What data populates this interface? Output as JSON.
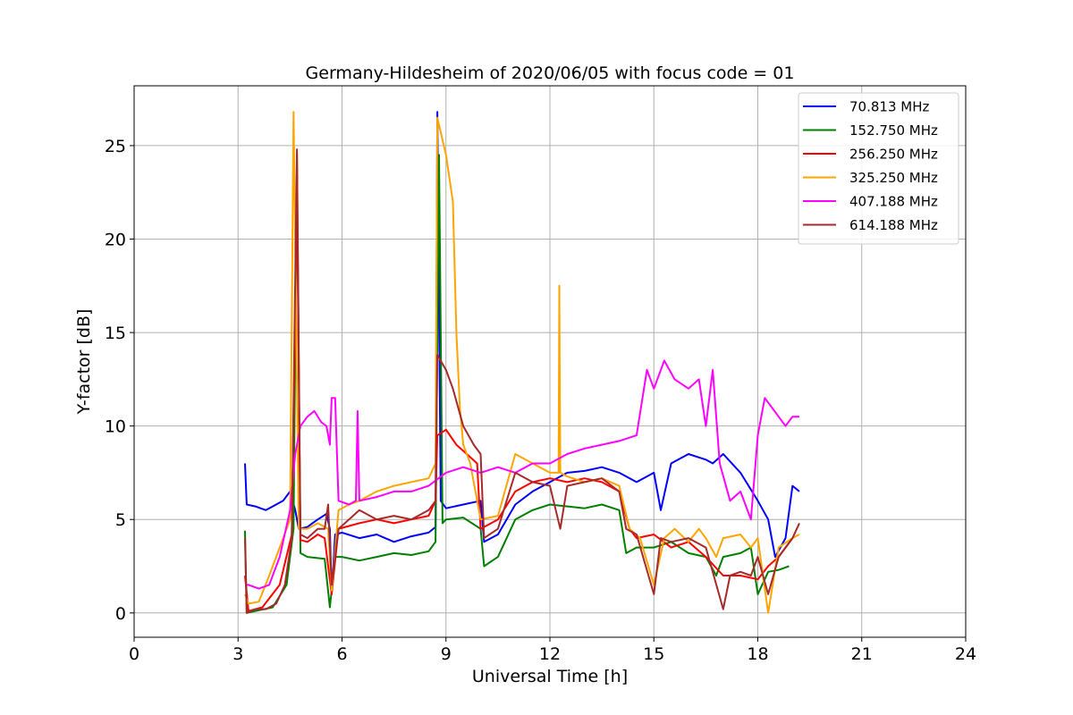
{
  "chart_data": {
    "type": "line",
    "title": "Germany-Hildesheim of 2020/06/05 with focus code = 01",
    "xlabel": "Universal Time [h]",
    "ylabel": "Y-factor [dB]",
    "xlim": [
      0,
      24
    ],
    "ylim": [
      -1.3,
      28.2
    ],
    "xticks": [
      0,
      3,
      6,
      9,
      12,
      15,
      18,
      21,
      24
    ],
    "yticks": [
      0,
      5,
      10,
      15,
      20,
      25
    ],
    "grid": true,
    "legend_position": "top-right",
    "series": [
      {
        "name": " 70.813 MHz",
        "color": "#0000ff",
        "points": [
          [
            3.2,
            8.0
          ],
          [
            3.25,
            5.8
          ],
          [
            3.5,
            5.7
          ],
          [
            3.8,
            5.5
          ],
          [
            4.0,
            5.7
          ],
          [
            4.3,
            6.0
          ],
          [
            4.5,
            6.5
          ],
          [
            4.65,
            5.5
          ],
          [
            4.75,
            4.5
          ],
          [
            5.0,
            4.6
          ],
          [
            5.3,
            5.0
          ],
          [
            5.55,
            5.3
          ],
          [
            5.65,
            4.5
          ],
          [
            5.7,
            1.0
          ],
          [
            5.8,
            4.2
          ],
          [
            6.0,
            4.3
          ],
          [
            6.5,
            4.0
          ],
          [
            7.0,
            4.2
          ],
          [
            7.5,
            3.8
          ],
          [
            8.0,
            4.1
          ],
          [
            8.5,
            4.3
          ],
          [
            8.7,
            4.6
          ],
          [
            8.75,
            26.8
          ],
          [
            8.85,
            6.0
          ],
          [
            9.0,
            5.6
          ],
          [
            9.5,
            5.8
          ],
          [
            10.0,
            6.0
          ],
          [
            10.1,
            3.8
          ],
          [
            10.5,
            4.2
          ],
          [
            11.0,
            5.8
          ],
          [
            11.5,
            6.5
          ],
          [
            12.0,
            7.0
          ],
          [
            12.5,
            7.5
          ],
          [
            13.0,
            7.6
          ],
          [
            13.5,
            7.8
          ],
          [
            14.0,
            7.5
          ],
          [
            14.5,
            7.0
          ],
          [
            15.0,
            7.5
          ],
          [
            15.2,
            5.5
          ],
          [
            15.5,
            8.0
          ],
          [
            16.0,
            8.5
          ],
          [
            16.5,
            8.2
          ],
          [
            16.7,
            8.0
          ],
          [
            17.0,
            8.5
          ],
          [
            17.5,
            7.5
          ],
          [
            18.0,
            6.0
          ],
          [
            18.3,
            5.0
          ],
          [
            18.5,
            3.0
          ],
          [
            18.8,
            4.0
          ],
          [
            19.0,
            6.8
          ],
          [
            19.2,
            6.5
          ]
        ]
      },
      {
        "name": "152.750 MHz",
        "color": "#008000",
        "points": [
          [
            3.2,
            4.4
          ],
          [
            3.25,
            0.0
          ],
          [
            3.5,
            0.1
          ],
          [
            4.0,
            0.3
          ],
          [
            4.4,
            1.5
          ],
          [
            4.6,
            4.5
          ],
          [
            4.7,
            24.5
          ],
          [
            4.8,
            3.2
          ],
          [
            5.0,
            3.0
          ],
          [
            5.5,
            2.9
          ],
          [
            5.65,
            0.3
          ],
          [
            5.8,
            3.0
          ],
          [
            6.0,
            3.0
          ],
          [
            6.5,
            2.8
          ],
          [
            7.0,
            3.0
          ],
          [
            7.5,
            3.2
          ],
          [
            8.0,
            3.1
          ],
          [
            8.5,
            3.3
          ],
          [
            8.7,
            3.8
          ],
          [
            8.8,
            24.5
          ],
          [
            8.9,
            4.8
          ],
          [
            9.0,
            5.0
          ],
          [
            9.5,
            5.1
          ],
          [
            10.0,
            4.5
          ],
          [
            10.1,
            2.5
          ],
          [
            10.5,
            3.0
          ],
          [
            11.0,
            5.0
          ],
          [
            11.5,
            5.5
          ],
          [
            12.0,
            5.8
          ],
          [
            12.5,
            5.7
          ],
          [
            13.0,
            5.6
          ],
          [
            13.5,
            5.8
          ],
          [
            14.0,
            5.5
          ],
          [
            14.2,
            3.2
          ],
          [
            14.5,
            3.5
          ],
          [
            15.0,
            3.5
          ],
          [
            15.5,
            3.8
          ],
          [
            16.0,
            3.2
          ],
          [
            16.5,
            3.0
          ],
          [
            16.8,
            2.0
          ],
          [
            17.0,
            3.0
          ],
          [
            17.5,
            3.2
          ],
          [
            17.8,
            3.5
          ],
          [
            18.0,
            1.0
          ],
          [
            18.3,
            2.2
          ],
          [
            18.6,
            2.3
          ],
          [
            18.9,
            2.5
          ]
        ]
      },
      {
        "name": "256.250 MHz",
        "color": "#ff0000",
        "points": [
          [
            3.2,
            2.0
          ],
          [
            3.3,
            0.1
          ],
          [
            3.7,
            0.3
          ],
          [
            4.2,
            1.5
          ],
          [
            4.55,
            4.2
          ],
          [
            4.7,
            22.5
          ],
          [
            4.8,
            3.9
          ],
          [
            5.0,
            3.8
          ],
          [
            5.3,
            4.2
          ],
          [
            5.5,
            4.0
          ],
          [
            5.7,
            1.0
          ],
          [
            5.9,
            4.5
          ],
          [
            6.5,
            4.8
          ],
          [
            7.0,
            5.0
          ],
          [
            7.5,
            4.8
          ],
          [
            8.0,
            5.0
          ],
          [
            8.5,
            5.2
          ],
          [
            8.7,
            6.0
          ],
          [
            8.75,
            9.5
          ],
          [
            9.0,
            9.8
          ],
          [
            9.3,
            9.0
          ],
          [
            9.6,
            8.5
          ],
          [
            9.9,
            8.0
          ],
          [
            10.0,
            4.5
          ],
          [
            10.5,
            5.0
          ],
          [
            11.0,
            6.5
          ],
          [
            11.5,
            7.0
          ],
          [
            12.0,
            7.2
          ],
          [
            12.5,
            7.0
          ],
          [
            13.0,
            7.2
          ],
          [
            13.5,
            7.0
          ],
          [
            14.0,
            6.5
          ],
          [
            14.3,
            4.5
          ],
          [
            14.5,
            4.0
          ],
          [
            15.0,
            4.2
          ],
          [
            15.5,
            3.5
          ],
          [
            16.0,
            3.8
          ],
          [
            16.5,
            3.0
          ],
          [
            17.0,
            2.0
          ],
          [
            17.5,
            2.0
          ],
          [
            18.0,
            1.8
          ],
          [
            18.3,
            2.5
          ],
          [
            18.6,
            3.0
          ],
          [
            19.0,
            4.0
          ]
        ]
      },
      {
        "name": "325.250 MHz",
        "color": "#ffa500",
        "points": [
          [
            3.2,
            1.0
          ],
          [
            3.3,
            0.5
          ],
          [
            3.6,
            0.6
          ],
          [
            3.9,
            2.0
          ],
          [
            4.2,
            3.5
          ],
          [
            4.5,
            5.0
          ],
          [
            4.6,
            26.8
          ],
          [
            4.75,
            4.5
          ],
          [
            5.0,
            4.5
          ],
          [
            5.3,
            4.8
          ],
          [
            5.6,
            4.5
          ],
          [
            5.7,
            1.2
          ],
          [
            5.9,
            5.5
          ],
          [
            6.2,
            5.8
          ],
          [
            6.5,
            6.0
          ],
          [
            7.0,
            6.5
          ],
          [
            7.5,
            6.8
          ],
          [
            8.0,
            7.0
          ],
          [
            8.5,
            7.2
          ],
          [
            8.7,
            8.0
          ],
          [
            8.75,
            26.5
          ],
          [
            9.0,
            24.5
          ],
          [
            9.2,
            22.0
          ],
          [
            9.3,
            15.0
          ],
          [
            9.4,
            11.0
          ],
          [
            9.5,
            9.0
          ],
          [
            9.7,
            8.0
          ],
          [
            10.0,
            5.0
          ],
          [
            10.5,
            5.2
          ],
          [
            11.0,
            8.5
          ],
          [
            11.5,
            8.0
          ],
          [
            12.0,
            7.5
          ],
          [
            12.25,
            7.5
          ],
          [
            12.27,
            17.5
          ],
          [
            12.3,
            7.5
          ],
          [
            12.5,
            7.3
          ],
          [
            13.0,
            7.0
          ],
          [
            13.5,
            7.2
          ],
          [
            14.0,
            6.8
          ],
          [
            14.3,
            4.5
          ],
          [
            14.6,
            4.0
          ],
          [
            15.0,
            1.5
          ],
          [
            15.3,
            4.0
          ],
          [
            15.6,
            4.5
          ],
          [
            16.0,
            3.8
          ],
          [
            16.3,
            4.5
          ],
          [
            16.5,
            4.0
          ],
          [
            16.8,
            3.0
          ],
          [
            17.0,
            4.0
          ],
          [
            17.5,
            4.2
          ],
          [
            17.8,
            3.5
          ],
          [
            18.0,
            4.0
          ],
          [
            18.3,
            0.0
          ],
          [
            18.6,
            3.5
          ],
          [
            19.0,
            4.0
          ],
          [
            19.2,
            4.2
          ]
        ]
      },
      {
        "name": "407.188 MHz",
        "color": "#ff00ff",
        "points": [
          [
            3.2,
            1.5
          ],
          [
            3.3,
            1.5
          ],
          [
            3.6,
            1.3
          ],
          [
            3.9,
            1.5
          ],
          [
            4.2,
            3.0
          ],
          [
            4.5,
            5.5
          ],
          [
            4.65,
            8.5
          ],
          [
            4.8,
            10.0
          ],
          [
            5.0,
            10.5
          ],
          [
            5.2,
            10.8
          ],
          [
            5.4,
            10.2
          ],
          [
            5.55,
            10.0
          ],
          [
            5.65,
            9.0
          ],
          [
            5.7,
            11.5
          ],
          [
            5.8,
            11.5
          ],
          [
            5.9,
            6.0
          ],
          [
            6.2,
            5.8
          ],
          [
            6.4,
            6.0
          ],
          [
            6.45,
            10.8
          ],
          [
            6.5,
            6.0
          ],
          [
            7.0,
            6.2
          ],
          [
            7.5,
            6.5
          ],
          [
            8.0,
            6.5
          ],
          [
            8.5,
            6.8
          ],
          [
            9.0,
            7.5
          ],
          [
            9.5,
            7.8
          ],
          [
            10.0,
            7.5
          ],
          [
            10.5,
            7.8
          ],
          [
            11.0,
            7.5
          ],
          [
            11.5,
            8.0
          ],
          [
            12.0,
            8.0
          ],
          [
            12.5,
            8.5
          ],
          [
            13.0,
            8.8
          ],
          [
            13.5,
            9.0
          ],
          [
            14.0,
            9.2
          ],
          [
            14.5,
            9.5
          ],
          [
            14.8,
            13.0
          ],
          [
            15.0,
            12.0
          ],
          [
            15.3,
            13.5
          ],
          [
            15.6,
            12.5
          ],
          [
            16.0,
            12.0
          ],
          [
            16.3,
            12.5
          ],
          [
            16.5,
            10.0
          ],
          [
            16.7,
            13.0
          ],
          [
            16.9,
            8.0
          ],
          [
            17.2,
            6.0
          ],
          [
            17.5,
            6.5
          ],
          [
            17.8,
            5.0
          ],
          [
            18.0,
            9.5
          ],
          [
            18.2,
            11.5
          ],
          [
            18.4,
            11.0
          ],
          [
            18.6,
            10.5
          ],
          [
            18.8,
            10.0
          ],
          [
            19.0,
            10.5
          ],
          [
            19.2,
            10.5
          ]
        ]
      },
      {
        "name": "614.188 MHz",
        "color": "#a52a2a",
        "points": [
          [
            3.2,
            4.0
          ],
          [
            3.25,
            0.0
          ],
          [
            3.5,
            0.2
          ],
          [
            3.8,
            0.2
          ],
          [
            4.1,
            0.5
          ],
          [
            4.35,
            1.5
          ],
          [
            4.55,
            4.0
          ],
          [
            4.7,
            24.8
          ],
          [
            4.8,
            4.2
          ],
          [
            5.0,
            4.0
          ],
          [
            5.3,
            4.5
          ],
          [
            5.5,
            4.5
          ],
          [
            5.6,
            5.8
          ],
          [
            5.7,
            1.5
          ],
          [
            5.9,
            4.5
          ],
          [
            6.2,
            5.0
          ],
          [
            6.5,
            5.5
          ],
          [
            7.0,
            5.0
          ],
          [
            7.5,
            5.2
          ],
          [
            8.0,
            5.0
          ],
          [
            8.5,
            5.5
          ],
          [
            8.7,
            6.0
          ],
          [
            8.75,
            13.8
          ],
          [
            9.0,
            13.0
          ],
          [
            9.2,
            12.0
          ],
          [
            9.5,
            10.0
          ],
          [
            9.8,
            9.0
          ],
          [
            10.0,
            8.5
          ],
          [
            10.1,
            4.0
          ],
          [
            10.5,
            4.5
          ],
          [
            11.0,
            7.5
          ],
          [
            11.5,
            7.0
          ],
          [
            12.0,
            6.8
          ],
          [
            12.3,
            4.5
          ],
          [
            12.5,
            6.8
          ],
          [
            13.0,
            7.0
          ],
          [
            13.5,
            7.2
          ],
          [
            14.0,
            6.5
          ],
          [
            14.2,
            4.5
          ],
          [
            14.5,
            4.2
          ],
          [
            15.0,
            1.0
          ],
          [
            15.2,
            4.0
          ],
          [
            15.5,
            3.8
          ],
          [
            16.0,
            4.0
          ],
          [
            16.5,
            3.5
          ],
          [
            17.0,
            0.2
          ],
          [
            17.2,
            2.0
          ],
          [
            17.5,
            2.2
          ],
          [
            17.8,
            2.0
          ],
          [
            18.0,
            3.0
          ],
          [
            18.3,
            1.0
          ],
          [
            18.6,
            3.0
          ],
          [
            19.0,
            4.0
          ],
          [
            19.2,
            4.8
          ]
        ]
      }
    ]
  }
}
